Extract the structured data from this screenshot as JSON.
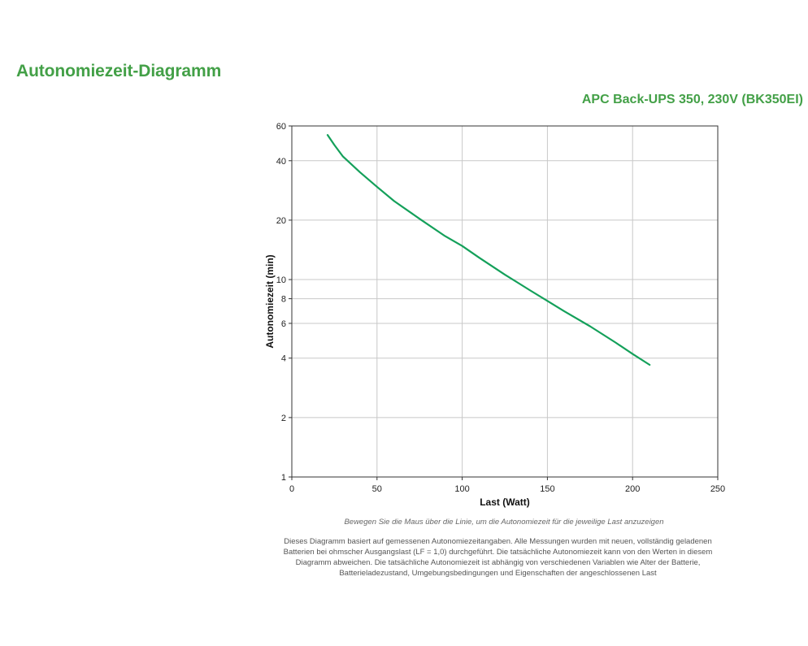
{
  "header": {
    "title": "Autonomiezeit-Diagramm",
    "product": "APC Back-UPS 350, 230V (BK350EI)"
  },
  "colors": {
    "accent": "#43a047",
    "line": "#14a05a",
    "grid": "#c8c8c8"
  },
  "chart_data": {
    "type": "line",
    "title": "APC Back-UPS 350, 230V (BK350EI)",
    "xlabel": "Last (Watt)",
    "ylabel": "Autonomiezeit (min)",
    "xlim": [
      0,
      250
    ],
    "ylim": [
      1,
      60
    ],
    "yscale": "log",
    "grid": true,
    "x_ticks": [
      0,
      50,
      100,
      150,
      200,
      250
    ],
    "y_ticks": [
      1,
      2,
      4,
      6,
      8,
      10,
      20,
      40,
      60
    ],
    "series": [
      {
        "name": "Autonomiezeit",
        "x": [
          21,
          25,
          30,
          40,
          50,
          60,
          75,
          90,
          100,
          110,
          125,
          140,
          150,
          160,
          175,
          190,
          200,
          210
        ],
        "y": [
          54,
          48,
          42,
          35,
          29.5,
          25,
          20.3,
          16.6,
          14.8,
          12.9,
          10.6,
          8.8,
          7.8,
          6.9,
          5.8,
          4.8,
          4.2,
          3.7
        ]
      }
    ]
  },
  "footer": {
    "hint": "Bewegen Sie die Maus über die Linie, um die Autonomiezeit für die jeweilige Last anzuzeigen",
    "disclaimer": "Dieses Diagramm basiert auf gemessenen Autonomiezeitangaben. Alle Messungen wurden mit neuen, vollständig geladenen Batterien bei ohmscher Ausgangslast (LF = 1,0) durchgeführt. Die tatsächliche Autonomiezeit kann von den Werten in diesem Diagramm abweichen. Die tatsächliche Autonomiezeit ist abhängig von verschiedenen Variablen wie Alter der Batterie, Batterieladezustand, Umgebungsbedingungen und Eigenschaften der angeschlossenen Last"
  }
}
